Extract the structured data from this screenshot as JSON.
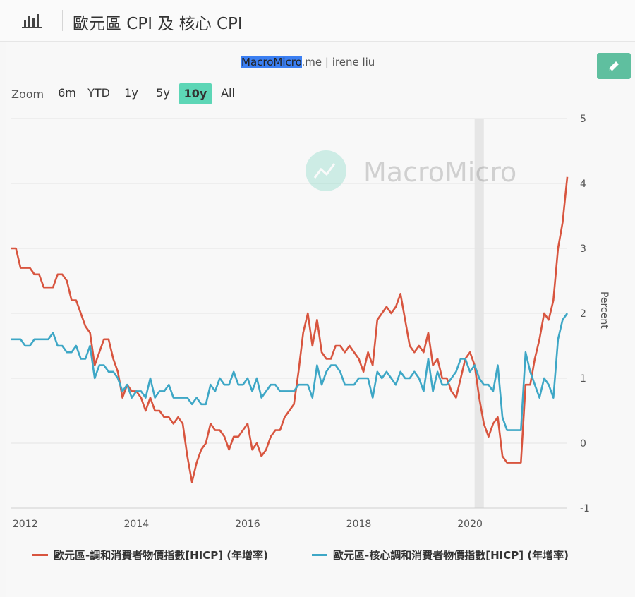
{
  "header": {
    "title": "歐元區 CPI 及 核心 CPI",
    "chart_icon": "bar-chart-icon"
  },
  "credit": {
    "highlight": "MacroMicro",
    "rest": ".me | irene liu"
  },
  "edit_icon": "pencil-icon",
  "watermark": {
    "text": "MacroMicro",
    "icon": "macromicro-logo-icon"
  },
  "zoom": {
    "label": "Zoom",
    "options": [
      "6m",
      "YTD",
      "1y",
      "5y",
      "10y",
      "All"
    ],
    "selected": "10y"
  },
  "colors": {
    "headline": "#d8553f",
    "core": "#3ea7c6",
    "zoom_active": "#5dd6b6",
    "edit_button": "#5fbf9f",
    "recession": "#e6e6e6"
  },
  "chart_data": {
    "type": "line",
    "x_range": [
      "2011-10",
      "2021-10"
    ],
    "xticks": [
      "2012",
      "2014",
      "2016",
      "2018",
      "2020"
    ],
    "ylim": [
      -1,
      5
    ],
    "yticks": [
      "-1",
      "0",
      "1",
      "2",
      "3",
      "4",
      "5"
    ],
    "ylabel": "Percent",
    "y_axis_position": "right",
    "shaded_period": [
      "2020-02",
      "2020-04"
    ],
    "legend_position": "bottom",
    "series": [
      {
        "name": "歐元區-調和消費者物價指數[HICP] (年增率)",
        "color": "#d8553f",
        "x": [
          "2011-10",
          "2011-11",
          "2011-12",
          "2012-01",
          "2012-02",
          "2012-03",
          "2012-04",
          "2012-05",
          "2012-06",
          "2012-07",
          "2012-08",
          "2012-09",
          "2012-10",
          "2012-11",
          "2012-12",
          "2013-01",
          "2013-02",
          "2013-03",
          "2013-04",
          "2013-05",
          "2013-06",
          "2013-07",
          "2013-08",
          "2013-09",
          "2013-10",
          "2013-11",
          "2013-12",
          "2014-01",
          "2014-02",
          "2014-03",
          "2014-04",
          "2014-05",
          "2014-06",
          "2014-07",
          "2014-08",
          "2014-09",
          "2014-10",
          "2014-11",
          "2014-12",
          "2015-01",
          "2015-02",
          "2015-03",
          "2015-04",
          "2015-05",
          "2015-06",
          "2015-07",
          "2015-08",
          "2015-09",
          "2015-10",
          "2015-11",
          "2015-12",
          "2016-01",
          "2016-02",
          "2016-03",
          "2016-04",
          "2016-05",
          "2016-06",
          "2016-07",
          "2016-08",
          "2016-09",
          "2016-10",
          "2016-11",
          "2016-12",
          "2017-01",
          "2017-02",
          "2017-03",
          "2017-04",
          "2017-05",
          "2017-06",
          "2017-07",
          "2017-08",
          "2017-09",
          "2017-10",
          "2017-11",
          "2017-12",
          "2018-01",
          "2018-02",
          "2018-03",
          "2018-04",
          "2018-05",
          "2018-06",
          "2018-07",
          "2018-08",
          "2018-09",
          "2018-10",
          "2018-11",
          "2018-12",
          "2019-01",
          "2019-02",
          "2019-03",
          "2019-04",
          "2019-05",
          "2019-06",
          "2019-07",
          "2019-08",
          "2019-09",
          "2019-10",
          "2019-11",
          "2019-12",
          "2020-01",
          "2020-02",
          "2020-03",
          "2020-04",
          "2020-05",
          "2020-06",
          "2020-07",
          "2020-08",
          "2020-09",
          "2020-10",
          "2020-11",
          "2020-12",
          "2021-01",
          "2021-02",
          "2021-03",
          "2021-04",
          "2021-05",
          "2021-06",
          "2021-07",
          "2021-08",
          "2021-09",
          "2021-10"
        ],
        "values": [
          3.0,
          3.0,
          2.7,
          2.7,
          2.7,
          2.6,
          2.6,
          2.4,
          2.4,
          2.4,
          2.6,
          2.6,
          2.5,
          2.2,
          2.2,
          2.0,
          1.8,
          1.7,
          1.2,
          1.4,
          1.6,
          1.6,
          1.3,
          1.1,
          0.7,
          0.9,
          0.8,
          0.8,
          0.7,
          0.5,
          0.7,
          0.5,
          0.5,
          0.4,
          0.4,
          0.3,
          0.4,
          0.3,
          -0.2,
          -0.6,
          -0.3,
          -0.1,
          0.0,
          0.3,
          0.2,
          0.2,
          0.1,
          -0.1,
          0.1,
          0.1,
          0.2,
          0.3,
          -0.1,
          0.0,
          -0.2,
          -0.1,
          0.1,
          0.2,
          0.2,
          0.4,
          0.5,
          0.6,
          1.1,
          1.7,
          2.0,
          1.5,
          1.9,
          1.4,
          1.3,
          1.3,
          1.5,
          1.5,
          1.4,
          1.5,
          1.4,
          1.3,
          1.1,
          1.4,
          1.2,
          1.9,
          2.0,
          2.1,
          2.0,
          2.1,
          2.3,
          1.9,
          1.5,
          1.4,
          1.5,
          1.4,
          1.7,
          1.2,
          1.3,
          1.0,
          1.0,
          0.8,
          0.7,
          1.0,
          1.3,
          1.4,
          1.2,
          0.7,
          0.3,
          0.1,
          0.3,
          0.4,
          -0.2,
          -0.3,
          -0.3,
          -0.3,
          -0.3,
          0.9,
          0.9,
          1.3,
          1.6,
          2.0,
          1.9,
          2.2,
          3.0,
          3.4,
          4.1
        ]
      },
      {
        "name": "歐元區-核心調和消費者物價指數[HICP] (年增率)",
        "color": "#3ea7c6",
        "x": [
          "2011-10",
          "2011-11",
          "2011-12",
          "2012-01",
          "2012-02",
          "2012-03",
          "2012-04",
          "2012-05",
          "2012-06",
          "2012-07",
          "2012-08",
          "2012-09",
          "2012-10",
          "2012-11",
          "2012-12",
          "2013-01",
          "2013-02",
          "2013-03",
          "2013-04",
          "2013-05",
          "2013-06",
          "2013-07",
          "2013-08",
          "2013-09",
          "2013-10",
          "2013-11",
          "2013-12",
          "2014-01",
          "2014-02",
          "2014-03",
          "2014-04",
          "2014-05",
          "2014-06",
          "2014-07",
          "2014-08",
          "2014-09",
          "2014-10",
          "2014-11",
          "2014-12",
          "2015-01",
          "2015-02",
          "2015-03",
          "2015-04",
          "2015-05",
          "2015-06",
          "2015-07",
          "2015-08",
          "2015-09",
          "2015-10",
          "2015-11",
          "2015-12",
          "2016-01",
          "2016-02",
          "2016-03",
          "2016-04",
          "2016-05",
          "2016-06",
          "2016-07",
          "2016-08",
          "2016-09",
          "2016-10",
          "2016-11",
          "2016-12",
          "2017-01",
          "2017-02",
          "2017-03",
          "2017-04",
          "2017-05",
          "2017-06",
          "2017-07",
          "2017-08",
          "2017-09",
          "2017-10",
          "2017-11",
          "2017-12",
          "2018-01",
          "2018-02",
          "2018-03",
          "2018-04",
          "2018-05",
          "2018-06",
          "2018-07",
          "2018-08",
          "2018-09",
          "2018-10",
          "2018-11",
          "2018-12",
          "2019-01",
          "2019-02",
          "2019-03",
          "2019-04",
          "2019-05",
          "2019-06",
          "2019-07",
          "2019-08",
          "2019-09",
          "2019-10",
          "2019-11",
          "2019-12",
          "2020-01",
          "2020-02",
          "2020-03",
          "2020-04",
          "2020-05",
          "2020-06",
          "2020-07",
          "2020-08",
          "2020-09",
          "2020-10",
          "2020-11",
          "2020-12",
          "2021-01",
          "2021-02",
          "2021-03",
          "2021-04",
          "2021-05",
          "2021-06",
          "2021-07",
          "2021-08",
          "2021-09",
          "2021-10"
        ],
        "values": [
          1.6,
          1.6,
          1.6,
          1.5,
          1.5,
          1.6,
          1.6,
          1.6,
          1.6,
          1.7,
          1.5,
          1.5,
          1.4,
          1.4,
          1.5,
          1.3,
          1.3,
          1.5,
          1.0,
          1.2,
          1.2,
          1.1,
          1.1,
          1.0,
          0.8,
          0.9,
          0.7,
          0.8,
          0.8,
          0.7,
          1.0,
          0.7,
          0.8,
          0.8,
          0.9,
          0.7,
          0.7,
          0.7,
          0.7,
          0.6,
          0.7,
          0.6,
          0.6,
          0.9,
          0.8,
          1.0,
          0.9,
          0.9,
          1.1,
          0.9,
          0.9,
          1.0,
          0.8,
          1.0,
          0.7,
          0.8,
          0.9,
          0.9,
          0.8,
          0.8,
          0.8,
          0.8,
          0.9,
          0.9,
          0.9,
          0.7,
          1.2,
          0.9,
          1.1,
          1.2,
          1.2,
          1.1,
          0.9,
          0.9,
          0.9,
          1.0,
          1.0,
          1.0,
          0.7,
          1.1,
          1.0,
          1.1,
          1.0,
          0.9,
          1.1,
          1.0,
          1.0,
          1.1,
          1.0,
          0.8,
          1.3,
          0.8,
          1.1,
          0.9,
          0.9,
          1.0,
          1.1,
          1.3,
          1.3,
          1.1,
          1.2,
          1.0,
          0.9,
          0.9,
          0.8,
          1.2,
          0.4,
          0.2,
          0.2,
          0.2,
          0.2,
          1.4,
          1.1,
          0.9,
          0.7,
          1.0,
          0.9,
          0.7,
          1.6,
          1.9,
          2.0
        ]
      }
    ]
  }
}
